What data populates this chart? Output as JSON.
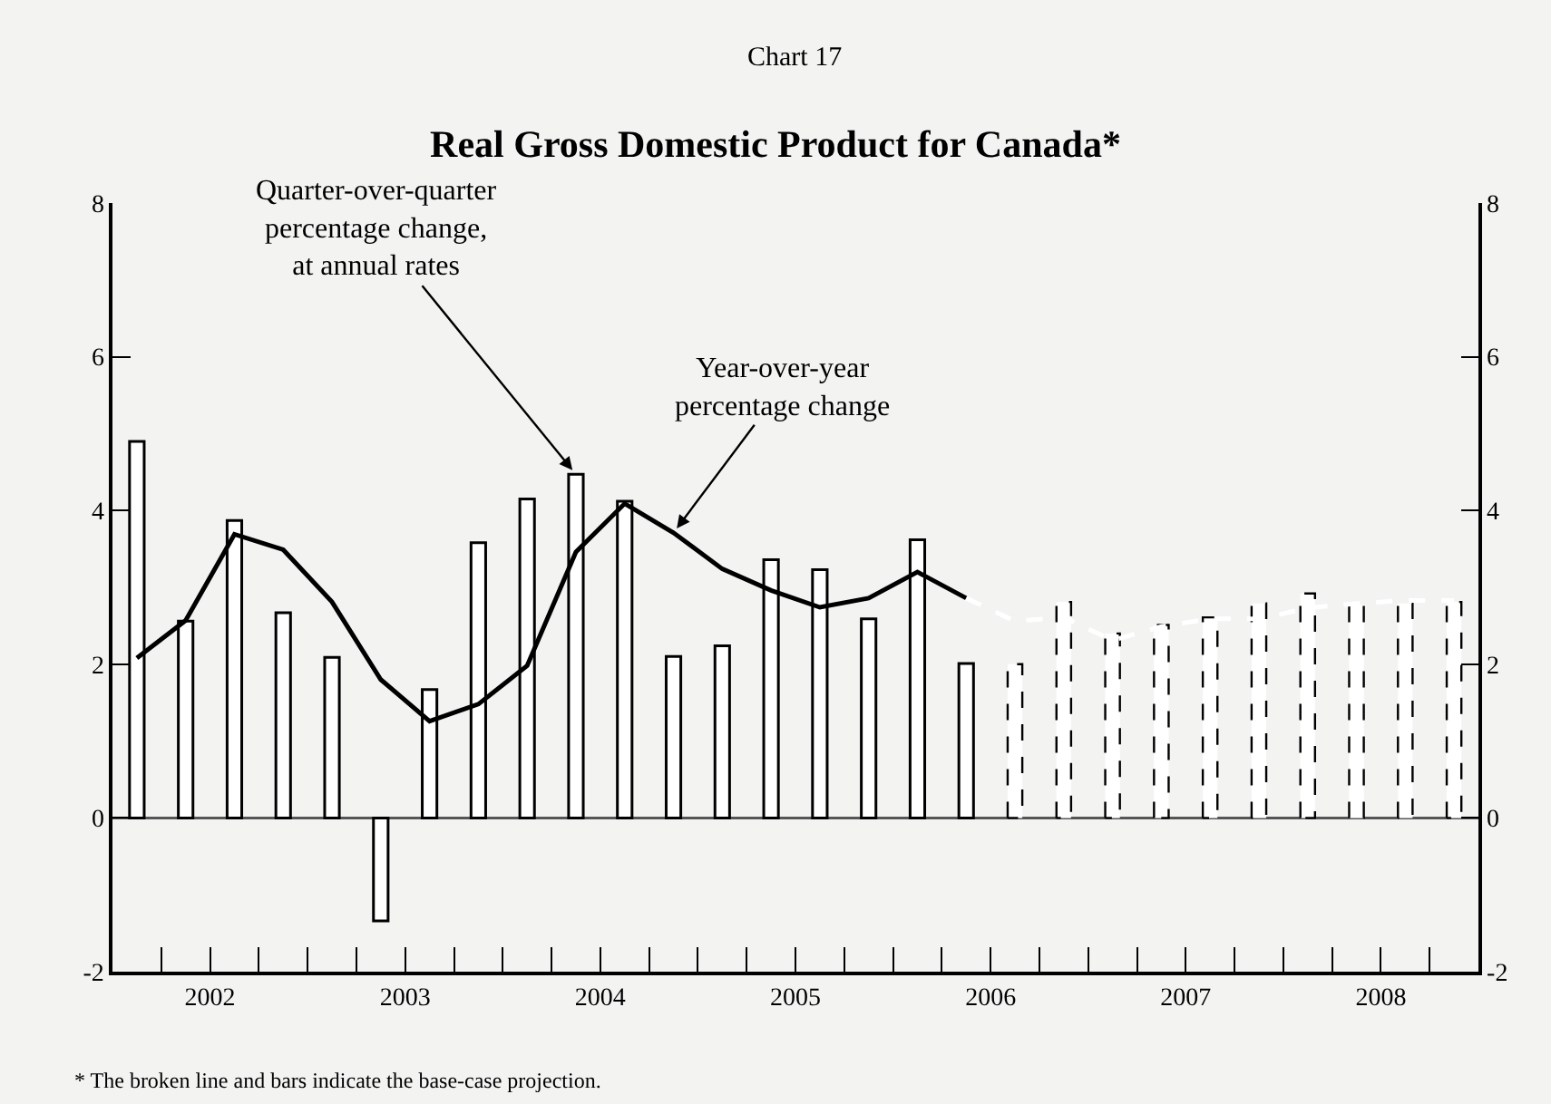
{
  "chart_data": {
    "type": "bar",
    "subtitle": "Chart 17",
    "title": "Real Gross Domestic Product for Canada*",
    "xlim": [
      2002,
      2009
    ],
    "xticks": [
      {
        "value": 2002,
        "label": null
      },
      {
        "value": 2002.25,
        "label": null
      },
      {
        "value": 2002.5,
        "label": "2002"
      },
      {
        "value": 2002.75,
        "label": null
      },
      {
        "value": 2003,
        "label": null
      },
      {
        "value": 2003.25,
        "label": null
      },
      {
        "value": 2003.5,
        "label": "2003"
      },
      {
        "value": 2003.75,
        "label": null
      },
      {
        "value": 2004,
        "label": null
      },
      {
        "value": 2004.25,
        "label": null
      },
      {
        "value": 2004.5,
        "label": "2004"
      },
      {
        "value": 2004.75,
        "label": null
      },
      {
        "value": 2005,
        "label": null
      },
      {
        "value": 2005.25,
        "label": null
      },
      {
        "value": 2005.5,
        "label": "2005"
      },
      {
        "value": 2005.75,
        "label": null
      },
      {
        "value": 2006,
        "label": null
      },
      {
        "value": 2006.25,
        "label": null
      },
      {
        "value": 2006.5,
        "label": "2006"
      },
      {
        "value": 2006.75,
        "label": null
      },
      {
        "value": 2007,
        "label": null
      },
      {
        "value": 2007.25,
        "label": null
      },
      {
        "value": 2007.5,
        "label": "2007"
      },
      {
        "value": 2007.75,
        "label": null
      },
      {
        "value": 2008,
        "label": null
      },
      {
        "value": 2008.25,
        "label": null
      },
      {
        "value": 2008.5,
        "label": "2008"
      },
      {
        "value": 2008.75,
        "label": null
      },
      {
        "value": 2009,
        "label": null
      }
    ],
    "ylim": [
      -2,
      8
    ],
    "yticks": [
      -2,
      0,
      2,
      4,
      6,
      8
    ],
    "y2lim": [
      -2,
      8
    ],
    "y2ticks": [
      -2,
      0,
      2,
      4,
      6,
      8
    ],
    "grid": false,
    "ref_lines": [
      {
        "axis": "y",
        "value": 0,
        "color": "#555555"
      }
    ],
    "series": [
      {
        "color": "#ffffff",
        "line_style": "solid",
        "x": [
          2002.125,
          2002.375,
          2002.625,
          2002.875,
          2003.125,
          2003.375,
          2003.625,
          2003.875,
          2004.125,
          2004.375,
          2004.625,
          2004.875,
          2005.125,
          2005.375,
          2005.625,
          2005.875,
          2006.125,
          2006.375
        ],
        "values": [
          4.9,
          2.56,
          3.87,
          2.67,
          2.09,
          -1.34,
          1.67,
          3.58,
          4.15,
          4.47,
          4.12,
          2.1,
          2.24,
          3.36,
          3.23,
          2.59,
          3.62,
          2.01
        ]
      },
      {
        "color": "#ffffff",
        "line_style": "dashed",
        "x": [
          2006.625,
          2006.875,
          2007.125,
          2007.375,
          2007.625,
          2007.875,
          2008.125,
          2008.375,
          2008.625,
          2008.875
        ],
        "values": [
          2.0,
          2.81,
          2.4,
          2.51,
          2.61,
          2.79,
          2.92,
          2.77,
          2.79,
          2.81
        ]
      },
      {
        "type": "line",
        "color": "#000000",
        "line_style": "solid",
        "x": [
          2002.125,
          2002.375,
          2002.625,
          2002.875,
          2003.125,
          2003.375,
          2003.625,
          2003.875,
          2004.125,
          2004.375,
          2004.625,
          2004.875,
          2005.125,
          2005.375,
          2005.625,
          2005.875,
          2006.125,
          2006.375
        ],
        "values": [
          2.08,
          2.57,
          3.69,
          3.49,
          2.81,
          1.8,
          1.26,
          1.48,
          1.98,
          3.46,
          4.09,
          3.71,
          3.24,
          2.96,
          2.74,
          2.86,
          3.2,
          2.86
        ]
      },
      {
        "type": "line",
        "color": "#ffffff",
        "line_style": "dashed",
        "x": [
          2006.375,
          2006.625,
          2006.875,
          2007.125,
          2007.375,
          2007.625,
          2007.875,
          2008.125,
          2008.375,
          2008.625,
          2008.875
        ],
        "values": [
          2.86,
          2.56,
          2.61,
          2.31,
          2.49,
          2.59,
          2.59,
          2.73,
          2.79,
          2.83,
          2.83
        ]
      }
    ],
    "annotations": [
      {
        "text": "Quarter-over-quarter\npercentage change,\nat annual rates",
        "x": 2004.375,
        "y": 4.47
      },
      {
        "text": "Year-over-year\npercentage change",
        "x": 2004.875,
        "y": 3.71
      },
      "* The broken line and bars indicate the base-case projection."
    ]
  }
}
